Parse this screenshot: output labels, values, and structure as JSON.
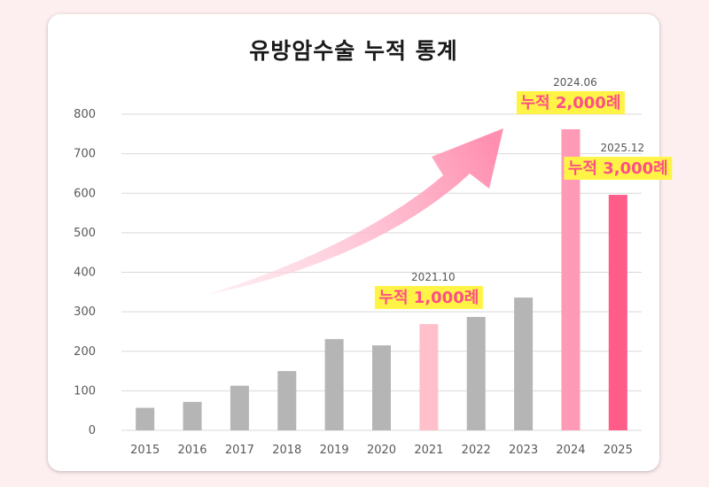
{
  "chart_data": {
    "type": "bar",
    "title": "유방암수술 누적 통계",
    "categories": [
      "2015",
      "2016",
      "2017",
      "2018",
      "2019",
      "2020",
      "2021",
      "2022",
      "2023",
      "2024",
      "2025"
    ],
    "values": [
      57,
      72,
      113,
      150,
      231,
      215,
      269,
      287,
      336,
      762,
      596
    ],
    "ylim": [
      0,
      800
    ],
    "yticks": [
      0,
      100,
      200,
      300,
      400,
      500,
      600,
      700,
      800
    ],
    "grid": true,
    "xlabel": "",
    "ylabel": "",
    "bar_colors": [
      "#b5b5b5",
      "#b5b5b5",
      "#b5b5b5",
      "#b5b5b5",
      "#b5b5b5",
      "#b5b5b5",
      "#ffc0cb",
      "#b5b5b5",
      "#b5b5b5",
      "#ff9ab6",
      "#ff5c8a"
    ],
    "milestones": [
      {
        "category": "2021",
        "date": "2021.10",
        "label": "누적 1,000례"
      },
      {
        "category": "2024",
        "date": "2024.06",
        "label": "누적 2,000례"
      },
      {
        "category": "2025",
        "date": "2025.12",
        "label": "누적 3,000례"
      }
    ]
  },
  "colors": {
    "highlight_box": "#fff445",
    "milestone_text": "#ff4f86",
    "arrow_start": "#fde3e9",
    "arrow_end": "#ff8fb0"
  }
}
